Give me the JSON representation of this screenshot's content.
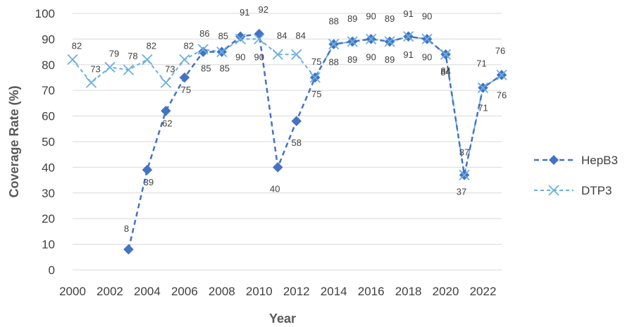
{
  "chart_data": {
    "type": "line",
    "title": "",
    "xlabel": "Year",
    "ylabel": "Coverage Rate (%)",
    "ylim": [
      0,
      100
    ],
    "yticks": [
      "0",
      "10",
      "20",
      "30",
      "40",
      "50",
      "60",
      "70",
      "80",
      "90",
      "100"
    ],
    "xlim": [
      2000,
      2023
    ],
    "xticks": [
      "2000",
      "2002",
      "2004",
      "2006",
      "2008",
      "2010",
      "2012",
      "2014",
      "2016",
      "2018",
      "2020",
      "2022"
    ],
    "grid": "horizontal",
    "legend_position": "right",
    "series": [
      {
        "name": "HepB3",
        "color": "#4472c4",
        "line_style": "dashed",
        "marker": "diamond",
        "points": [
          {
            "x": 2003,
            "y": 8
          },
          {
            "x": 2004,
            "y": 39
          },
          {
            "x": 2005,
            "y": 62
          },
          {
            "x": 2006,
            "y": 75
          },
          {
            "x": 2007,
            "y": 85
          },
          {
            "x": 2008,
            "y": 85
          },
          {
            "x": 2009,
            "y": 91
          },
          {
            "x": 2010,
            "y": 92
          },
          {
            "x": 2011,
            "y": 40
          },
          {
            "x": 2012,
            "y": 58
          },
          {
            "x": 2013,
            "y": 75
          },
          {
            "x": 2014,
            "y": 88
          },
          {
            "x": 2015,
            "y": 89
          },
          {
            "x": 2016,
            "y": 90
          },
          {
            "x": 2017,
            "y": 89
          },
          {
            "x": 2018,
            "y": 91
          },
          {
            "x": 2019,
            "y": 90
          },
          {
            "x": 2020,
            "y": 84
          },
          {
            "x": 2021,
            "y": 37
          },
          {
            "x": 2022,
            "y": 71
          },
          {
            "x": 2023,
            "y": 76
          }
        ]
      },
      {
        "name": "DTP3",
        "color": "#6ab0de",
        "line_style": "dashed",
        "marker": "x",
        "points": [
          {
            "x": 2000,
            "y": 82
          },
          {
            "x": 2001,
            "y": 73
          },
          {
            "x": 2002,
            "y": 79
          },
          {
            "x": 2003,
            "y": 78
          },
          {
            "x": 2004,
            "y": 82
          },
          {
            "x": 2005,
            "y": 73
          },
          {
            "x": 2006,
            "y": 82
          },
          {
            "x": 2007,
            "y": 86
          },
          {
            "x": 2008,
            "y": 85
          },
          {
            "x": 2009,
            "y": 90
          },
          {
            "x": 2010,
            "y": 90
          },
          {
            "x": 2011,
            "y": 84
          },
          {
            "x": 2012,
            "y": 84
          },
          {
            "x": 2013,
            "y": 75
          },
          {
            "x": 2014,
            "y": 88
          },
          {
            "x": 2015,
            "y": 89
          },
          {
            "x": 2016,
            "y": 90
          },
          {
            "x": 2017,
            "y": 89
          },
          {
            "x": 2018,
            "y": 91
          },
          {
            "x": 2019,
            "y": 90
          },
          {
            "x": 2020,
            "y": 84
          },
          {
            "x": 2021,
            "y": 37
          },
          {
            "x": 2022,
            "y": 71
          },
          {
            "x": 2023,
            "y": 76
          }
        ]
      }
    ]
  }
}
